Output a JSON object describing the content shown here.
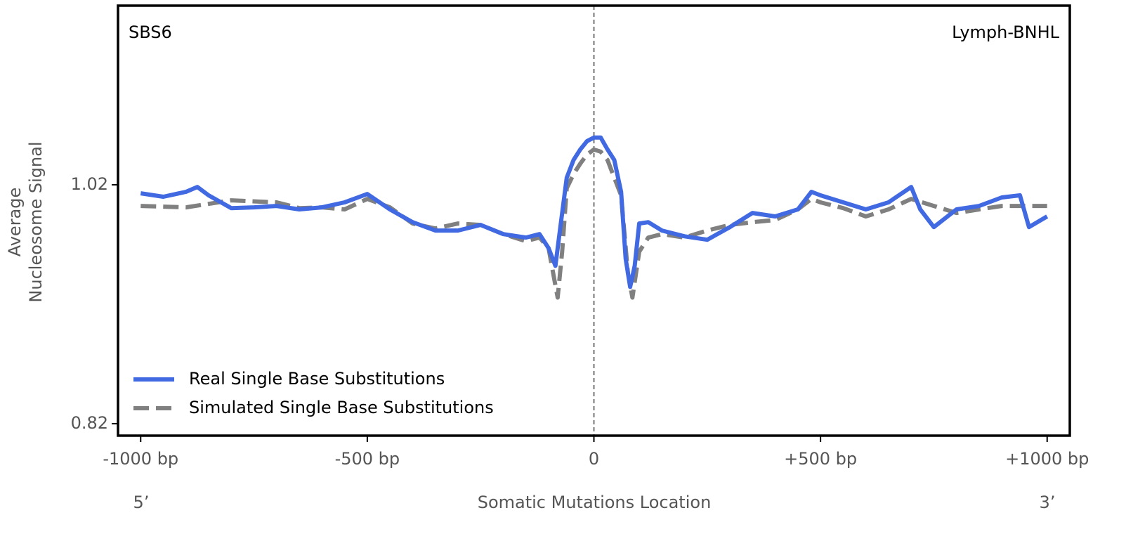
{
  "chart_data": {
    "type": "line",
    "title": "SBS6",
    "subtitle": "Lymph-BNHL",
    "xlabel": "Somatic Mutations Location",
    "ylabel": [
      "Average",
      "Nucleosome Signal"
    ],
    "annotations": [
      "5’",
      "3’"
    ],
    "xlim": [
      -1050,
      1050
    ],
    "ylim": [
      0.81,
      1.17
    ],
    "xticks": [
      {
        "value": -1000,
        "label": "-1000 bp"
      },
      {
        "value": -500,
        "label": "-500 bp"
      },
      0,
      {
        "value": 500,
        "label": "+500 bp"
      },
      {
        "value": 1000,
        "label": "+1000 bp"
      }
    ],
    "yticks": [
      0.82,
      1.02
    ],
    "center_line": true,
    "legend": "lower left",
    "series": [
      {
        "name": "Real Single Base Substitutions",
        "color": "#4169e1",
        "dashed": false,
        "x": [
          -1000,
          -950,
          -900,
          -875,
          -850,
          -800,
          -750,
          -700,
          -650,
          -600,
          -550,
          -500,
          -450,
          -400,
          -350,
          -300,
          -250,
          -200,
          -150,
          -120,
          -100,
          -85,
          -75,
          -60,
          -45,
          -30,
          -15,
          0,
          15,
          30,
          45,
          60,
          70,
          80,
          90,
          100,
          120,
          150,
          200,
          250,
          300,
          350,
          400,
          450,
          480,
          500,
          550,
          600,
          650,
          700,
          720,
          750,
          800,
          850,
          900,
          940,
          960,
          1000
        ],
        "values": [
          1.0129,
          1.01,
          1.0141,
          1.0182,
          1.0112,
          1.0005,
          1.0011,
          1.0023,
          0.9994,
          1.0011,
          1.0053,
          1.0123,
          0.9994,
          0.9887,
          0.9817,
          0.9817,
          0.9864,
          0.9787,
          0.9758,
          0.9787,
          0.9669,
          0.9522,
          0.9817,
          1.0259,
          1.0407,
          1.0495,
          1.0566,
          1.0595,
          1.0595,
          1.0495,
          1.0407,
          1.0141,
          0.9581,
          0.9345,
          0.9522,
          0.9876,
          0.9887,
          0.9817,
          0.9769,
          0.974,
          0.9846,
          0.9964,
          0.9935,
          0.9994,
          1.0141,
          1.0112,
          1.0053,
          0.9994,
          1.0053,
          1.0182,
          0.9994,
          0.9846,
          0.9994,
          1.0023,
          1.0094,
          1.0112,
          0.9846,
          0.9935
        ]
      },
      {
        "name": "Simulated Single Base Substitutions",
        "color": "#808080",
        "dashed": true,
        "x": [
          -1000,
          -900,
          -800,
          -700,
          -650,
          -600,
          -550,
          -500,
          -450,
          -400,
          -350,
          -300,
          -250,
          -200,
          -150,
          -120,
          -100,
          -90,
          -80,
          -70,
          -60,
          -45,
          -30,
          -15,
          0,
          15,
          30,
          45,
          60,
          75,
          85,
          100,
          120,
          150,
          200,
          250,
          300,
          350,
          400,
          450,
          480,
          500,
          550,
          600,
          650,
          700,
          750,
          800,
          850,
          900,
          950,
          1000
        ],
        "values": [
          1.0023,
          1.0011,
          1.007,
          1.0053,
          1.0005,
          1.0011,
          0.9994,
          1.0082,
          1.0011,
          0.9876,
          0.9834,
          0.9876,
          0.9864,
          0.9787,
          0.9728,
          0.9758,
          0.9669,
          0.9463,
          0.9256,
          0.964,
          1.0171,
          1.0289,
          1.0377,
          1.0454,
          1.0495,
          1.0477,
          1.0407,
          1.0259,
          1.0112,
          0.9463,
          0.9256,
          0.964,
          0.9758,
          0.9787,
          0.9758,
          0.9817,
          0.9864,
          0.9887,
          0.9905,
          0.9994,
          1.0082,
          1.0053,
          1.0005,
          0.9935,
          0.9994,
          1.0082,
          1.0023,
          0.9964,
          0.9994,
          1.0023,
          1.0023,
          1.0023
        ]
      }
    ]
  }
}
